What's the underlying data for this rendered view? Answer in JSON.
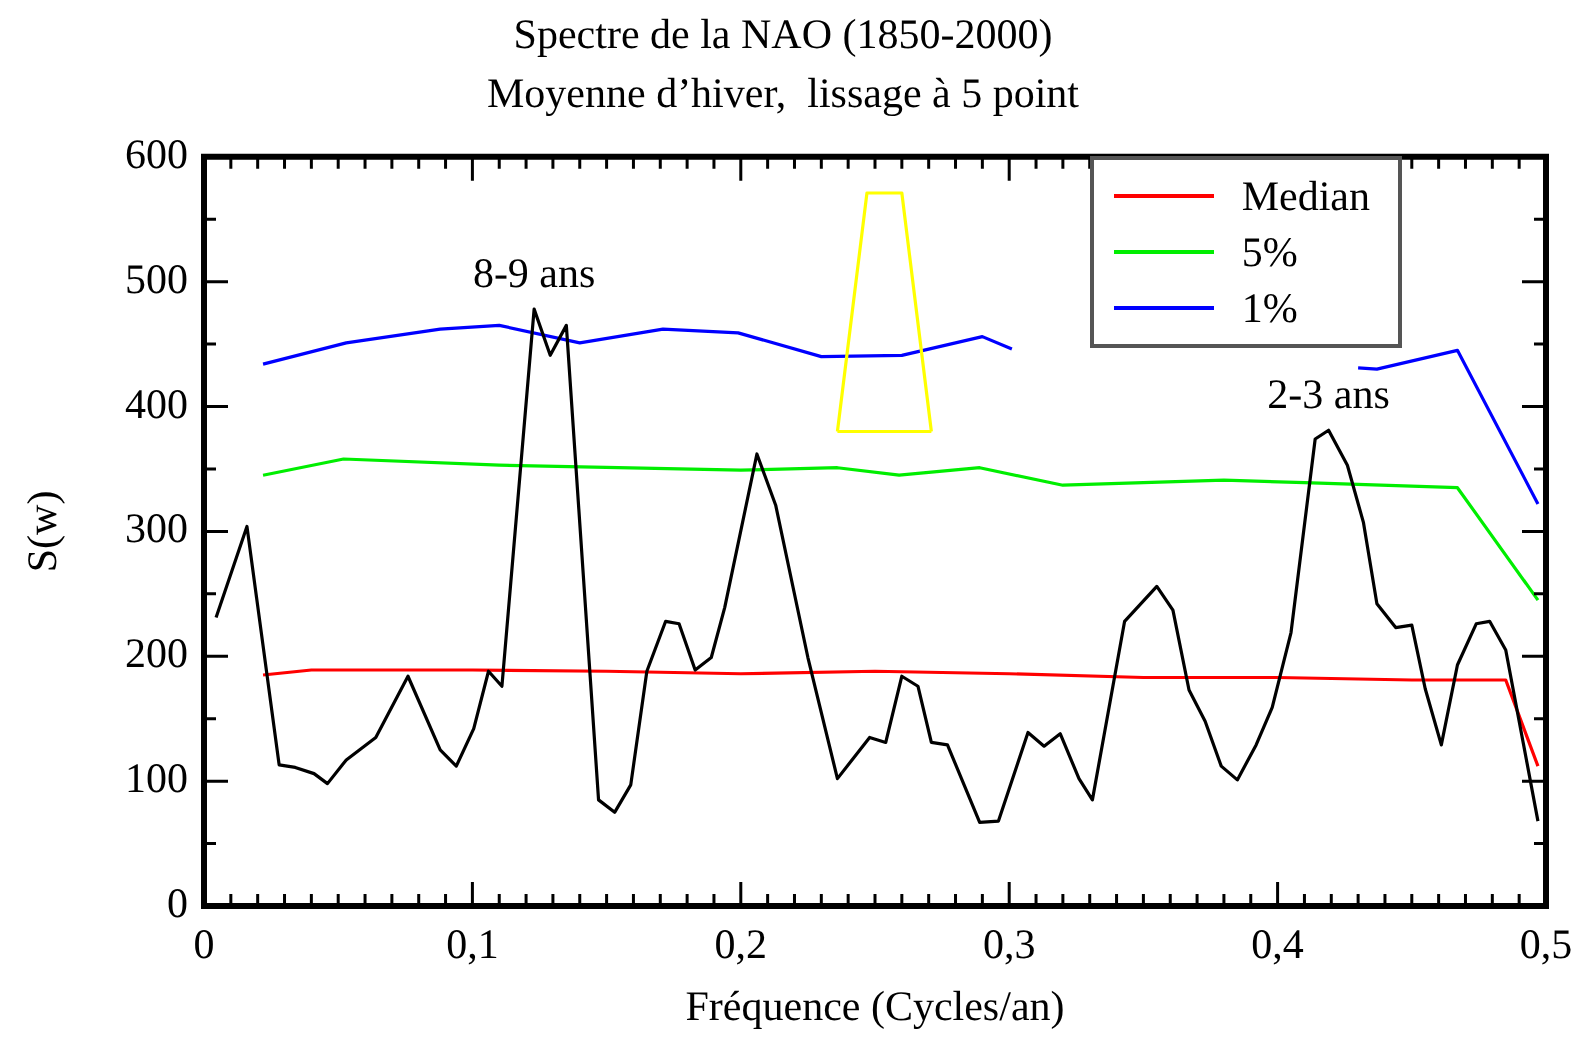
{
  "chart_data": {
    "type": "line",
    "title": "Spectre de la NAO (1850-2000)",
    "subtitle": "Moyenne d’hiver,  lissage à 5 point",
    "xlabel": "Fréquence (Cycles/an)",
    "ylabel": "S(w)",
    "xlim": [
      0,
      0.5
    ],
    "xticks": [
      0,
      {
        "value": 0.01,
        "label": null
      },
      {
        "value": 0.02,
        "label": null
      },
      {
        "value": 0.03,
        "label": null
      },
      {
        "value": 0.04,
        "label": null
      },
      {
        "value": 0.05,
        "label": null
      },
      {
        "value": 0.06,
        "label": null
      },
      {
        "value": 0.07,
        "label": null
      },
      {
        "value": 0.08,
        "label": null
      },
      {
        "value": 0.09,
        "label": null
      },
      {
        "value": 0.1,
        "label": "0,1"
      },
      {
        "value": 0.11,
        "label": null
      },
      {
        "value": 0.12,
        "label": null
      },
      {
        "value": 0.13,
        "label": null
      },
      {
        "value": 0.14,
        "label": null
      },
      {
        "value": 0.15,
        "label": null
      },
      {
        "value": 0.16,
        "label": null
      },
      {
        "value": 0.17,
        "label": null
      },
      {
        "value": 0.18,
        "label": null
      },
      {
        "value": 0.19,
        "label": null
      },
      {
        "value": 0.2,
        "label": "0,2"
      },
      {
        "value": 0.21,
        "label": null
      },
      {
        "value": 0.22,
        "label": null
      },
      {
        "value": 0.23,
        "label": null
      },
      {
        "value": 0.24,
        "label": null
      },
      {
        "value": 0.25,
        "label": null
      },
      {
        "value": 0.26,
        "label": null
      },
      {
        "value": 0.27,
        "label": null
      },
      {
        "value": 0.28,
        "label": null
      },
      {
        "value": 0.29,
        "label": null
      },
      {
        "value": 0.3,
        "label": "0,3"
      },
      {
        "value": 0.31,
        "label": null
      },
      {
        "value": 0.32,
        "label": null
      },
      {
        "value": 0.33,
        "label": null
      },
      {
        "value": 0.34,
        "label": null
      },
      {
        "value": 0.35,
        "label": null
      },
      {
        "value": 0.36,
        "label": null
      },
      {
        "value": 0.37,
        "label": null
      },
      {
        "value": 0.38,
        "label": null
      },
      {
        "value": 0.39,
        "label": null
      },
      {
        "value": 0.4,
        "label": "0,4"
      },
      {
        "value": 0.41,
        "label": null
      },
      {
        "value": 0.42,
        "label": null
      },
      {
        "value": 0.43,
        "label": null
      },
      {
        "value": 0.44,
        "label": null
      },
      {
        "value": 0.45,
        "label": null
      },
      {
        "value": 0.46,
        "label": null
      },
      {
        "value": 0.47,
        "label": null
      },
      {
        "value": 0.48,
        "label": null
      },
      {
        "value": 0.49,
        "label": null
      },
      {
        "value": 0.5,
        "label": "0,5"
      }
    ],
    "ylim": [
      0,
      600
    ],
    "yticks": [
      0,
      {
        "value": 50,
        "label": null
      },
      100,
      {
        "value": 150,
        "label": null
      },
      200,
      {
        "value": 250,
        "label": null
      },
      300,
      {
        "value": 350,
        "label": null
      },
      400,
      {
        "value": 450,
        "label": null
      },
      500,
      {
        "value": 550,
        "label": null
      },
      600
    ],
    "grid": false,
    "legend": "top right",
    "marker": "none",
    "line_style": "solid",
    "series": [
      {
        "color": "#000000",
        "x": [
          0.0045,
          0.016,
          0.028,
          0.034,
          0.041,
          0.046,
          0.053,
          0.064,
          0.076,
          0.088,
          0.094,
          0.1005,
          0.106,
          0.111,
          0.123,
          0.129,
          0.135,
          0.147,
          0.153,
          0.159,
          0.165,
          0.172,
          0.177,
          0.183,
          0.189,
          0.194,
          0.206,
          0.213,
          0.225,
          0.236,
          0.248,
          0.254,
          0.26,
          0.266,
          0.271,
          0.277,
          0.289,
          0.296,
          0.307,
          0.313,
          0.319,
          0.326,
          0.331,
          0.343,
          0.355,
          0.361,
          0.367,
          0.373,
          0.379,
          0.385,
          0.392,
          0.398,
          0.405,
          0.414,
          0.419,
          0.426,
          0.432,
          0.437,
          0.444,
          0.45,
          0.455,
          0.461,
          0.467,
          0.474,
          0.479,
          0.485,
          0.497
        ],
        "values": [
          231,
          304,
          113,
          111,
          106,
          98,
          117,
          135,
          184,
          125,
          112,
          142,
          188,
          176,
          478,
          441,
          465,
          85,
          75,
          97,
          188,
          228,
          226,
          189,
          199,
          239,
          362,
          321,
          199,
          102,
          135,
          131,
          184,
          176,
          131,
          129,
          67,
          68,
          139,
          128,
          138,
          102,
          85,
          228,
          256,
          237,
          173,
          148,
          112,
          101,
          129,
          159,
          219,
          374,
          381,
          353,
          307,
          242,
          223,
          225,
          174,
          129,
          193,
          226,
          228,
          205,
          68
        ]
      },
      {
        "name": "Median",
        "color": "#ff0000",
        "x": [
          0.022,
          0.04,
          0.1,
          0.15,
          0.2,
          0.25,
          0.3,
          0.35,
          0.4,
          0.45,
          0.485,
          0.497
        ],
        "values": [
          185,
          189,
          189,
          188,
          186,
          188,
          186,
          183,
          183,
          181,
          181,
          112
        ]
      },
      {
        "name": "5%",
        "color": "#00ee00",
        "x": [
          0.022,
          0.052,
          0.11,
          0.2,
          0.236,
          0.259,
          0.289,
          0.32,
          0.38,
          0.41,
          0.467,
          0.497
        ],
        "values": [
          345,
          358,
          353,
          349,
          351,
          345,
          351,
          337,
          341,
          339,
          335,
          245
        ]
      },
      {
        "type": "line",
        "color": "#ffff00",
        "x": [
          0.236,
          0.247,
          0.26,
          0.271
        ],
        "values": [
          380,
          571,
          571,
          380
        ]
      },
      {
        "type": "line",
        "color": "#ffff00",
        "x": [
          0.236,
          0.271
        ],
        "values": [
          380,
          380
        ]
      },
      {
        "name": "1%",
        "color": "#0000ff",
        "x": [
          0.022,
          0.053,
          0.088,
          0.11,
          0.14,
          0.171,
          0.199,
          0.23,
          0.26,
          0.29,
          0.301,
          0.36,
          0.43,
          0.437,
          0.467,
          0.497
        ],
        "values": [
          434,
          451,
          462,
          465,
          451,
          462,
          459,
          440,
          441,
          456,
          446,
          null,
          431,
          430,
          445,
          322
        ]
      }
    ],
    "annotations": [
      {
        "text": "8-9 ans",
        "x": 0.123,
        "y": 478
      },
      {
        "text": "2-3 ans",
        "x": 0.419,
        "y": 381
      }
    ]
  }
}
